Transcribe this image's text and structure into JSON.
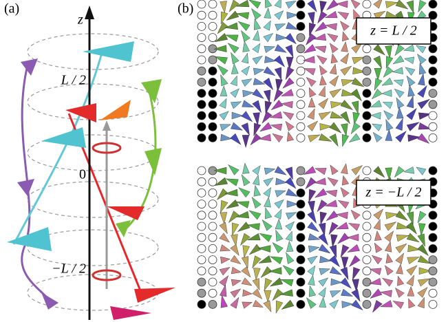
{
  "panel_a": {
    "label": "(a)",
    "axis_label": "z",
    "ticks": [
      "L / 2",
      "0",
      "−L / 2"
    ]
  },
  "panel_b": {
    "label": "(b)",
    "insets": [
      "z = L / 2",
      "z = −L / 2"
    ]
  }
}
